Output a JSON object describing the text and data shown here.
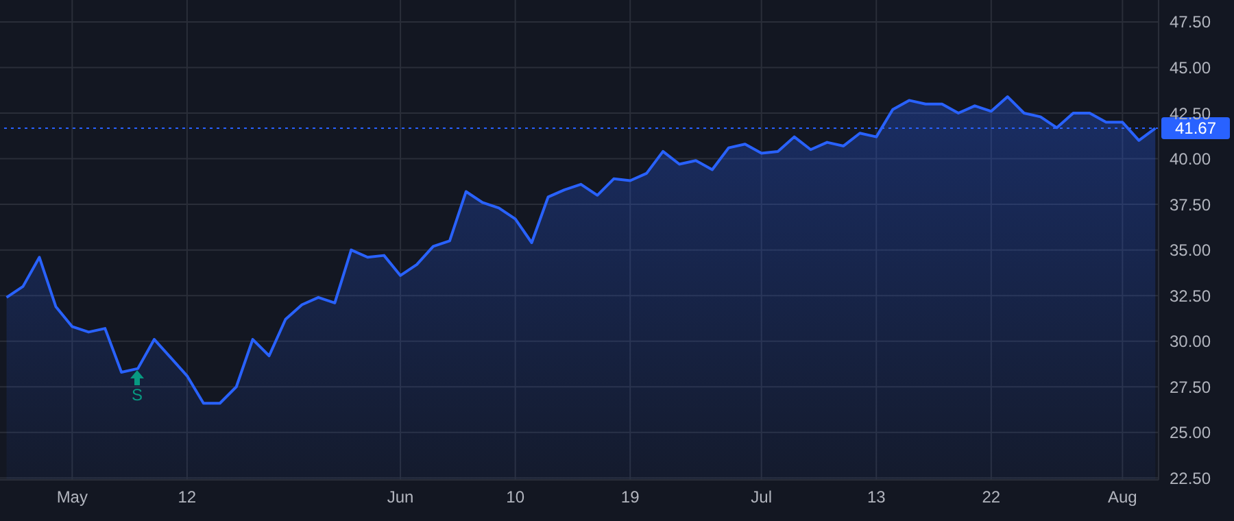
{
  "chart_data": {
    "type": "area",
    "categories": [
      null,
      null,
      null,
      null,
      "May",
      null,
      null,
      null,
      null,
      null,
      null,
      "12",
      null,
      null,
      null,
      null,
      null,
      null,
      null,
      null,
      null,
      null,
      null,
      null,
      "Jun",
      null,
      null,
      null,
      null,
      null,
      null,
      "10",
      null,
      null,
      null,
      null,
      null,
      null,
      "19",
      null,
      null,
      null,
      null,
      null,
      null,
      null,
      "Jul",
      null,
      null,
      null,
      null,
      null,
      null,
      "13",
      null,
      null,
      null,
      null,
      null,
      null,
      "22",
      null,
      null,
      null,
      null,
      null,
      null,
      null,
      "Aug",
      null,
      null
    ],
    "series": [
      {
        "color": "#2962ff",
        "values": [
          32.4,
          33.0,
          34.6,
          31.9,
          30.8,
          30.5,
          30.7,
          28.3,
          28.5,
          30.1,
          29.1,
          28.1,
          26.6,
          26.6,
          27.5,
          30.1,
          29.2,
          31.2,
          32.0,
          32.4,
          32.1,
          35.0,
          34.6,
          34.7,
          33.6,
          34.2,
          35.2,
          35.5,
          38.2,
          37.6,
          37.3,
          36.7,
          35.4,
          37.9,
          38.3,
          38.6,
          38.0,
          38.9,
          38.8,
          39.2,
          40.4,
          39.7,
          39.9,
          39.4,
          40.6,
          40.8,
          40.3,
          40.4,
          41.2,
          40.5,
          40.9,
          40.7,
          41.4,
          41.2,
          42.7,
          43.2,
          43.0,
          43.0,
          42.5,
          42.9,
          42.6,
          43.4,
          42.5,
          42.3,
          41.7,
          42.5,
          42.5,
          42.0,
          42.0,
          41.0,
          41.67
        ]
      }
    ],
    "ylim": [
      22.4,
      48.7
    ],
    "yticks": [
      {
        "value": 22.5,
        "label": "22.50"
      },
      {
        "value": 25,
        "label": "25.00"
      },
      {
        "value": 27.5,
        "label": "27.50"
      },
      {
        "value": 30,
        "label": "30.00"
      },
      {
        "value": 32.5,
        "label": "32.50"
      },
      {
        "value": 35,
        "label": "35.00"
      },
      {
        "value": 37.5,
        "label": "37.50"
      },
      {
        "value": 40,
        "label": "40.00"
      },
      {
        "value": 42.5,
        "label": "42.50"
      },
      {
        "value": 45,
        "label": "45.00"
      },
      {
        "value": 47.5,
        "label": "47.50"
      }
    ],
    "grid": true,
    "ref_lines": [
      {
        "axis": "y",
        "value": 41.67,
        "label": "41.67",
        "color": "#2962ff",
        "line_style": "dotted"
      }
    ],
    "annotations": [
      "S"
    ]
  }
}
